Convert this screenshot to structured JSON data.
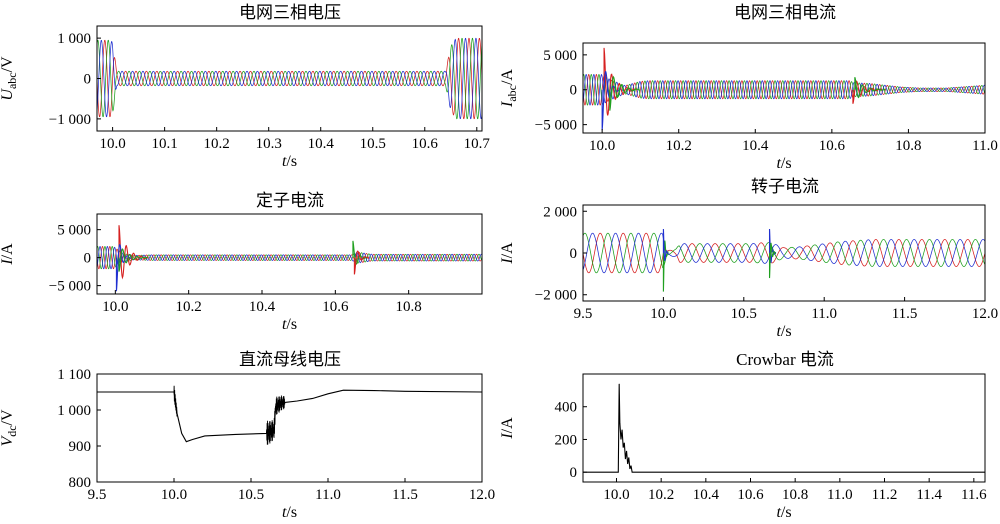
{
  "chart_data": [
    {
      "id": "p1",
      "type": "line",
      "title": "电网三相电压",
      "xlabel": "t/s",
      "ylabel": "U_abc/V",
      "ylabel_parts": {
        "sym": "U",
        "sub": "abc",
        "unit": "/V"
      },
      "xlim": [
        9.97,
        10.71
      ],
      "ylim": [
        -1300,
        1300
      ],
      "xticks": [
        10.0,
        10.1,
        10.2,
        10.3,
        10.4,
        10.5,
        10.6,
        10.7
      ],
      "xtick_labels": [
        "10.0",
        "10.1",
        "10.2",
        "10.3",
        "10.4",
        "10.5",
        "10.6",
        "10.7"
      ],
      "yticks": [
        1000,
        0,
        -1000
      ],
      "ytick_labels": [
        "1 000",
        "0",
        "−1 000"
      ],
      "frequency_hz": 50,
      "series": [
        {
          "color": "#d62020",
          "phase_deg": 0
        },
        {
          "color": "#20a020",
          "phase_deg": -120
        },
        {
          "color": "#2030d0",
          "phase_deg": 120
        }
      ],
      "envelope": [
        [
          9.97,
          950
        ],
        [
          9.995,
          950
        ],
        [
          10.0,
          900
        ],
        [
          10.008,
          180
        ],
        [
          10.64,
          180
        ],
        [
          10.65,
          800
        ],
        [
          10.66,
          1000
        ],
        [
          10.71,
          1000
        ]
      ],
      "spikes": []
    },
    {
      "id": "p2",
      "type": "line",
      "title": "电网三相电流",
      "xlabel": "t/s",
      "ylabel": "I_abc/A",
      "ylabel_parts": {
        "sym": "I",
        "sub": "abc",
        "unit": "/A"
      },
      "xlim": [
        9.95,
        11.0
      ],
      "ylim": [
        -6200,
        6700
      ],
      "xticks": [
        10.0,
        10.2,
        10.4,
        10.6,
        10.8,
        11.0
      ],
      "xtick_labels": [
        "10.0",
        "10.2",
        "10.4",
        "10.6",
        "10.8",
        "11.0"
      ],
      "yticks": [
        5000,
        0,
        -5000
      ],
      "ytick_labels": [
        "5 000",
        "0",
        "−5 000"
      ],
      "frequency_hz": 50,
      "series": [
        {
          "color": "#d62020",
          "phase_deg": 0
        },
        {
          "color": "#20a020",
          "phase_deg": -120
        },
        {
          "color": "#2030d0",
          "phase_deg": 120
        }
      ],
      "envelope": [
        [
          9.95,
          2200
        ],
        [
          9.998,
          2200
        ],
        [
          10.02,
          1500
        ],
        [
          10.06,
          600
        ],
        [
          10.1,
          1200
        ],
        [
          10.12,
          1300
        ],
        [
          10.645,
          1300
        ],
        [
          10.66,
          1000
        ],
        [
          10.7,
          900
        ],
        [
          10.78,
          400
        ],
        [
          10.83,
          250
        ],
        [
          10.9,
          250
        ],
        [
          11.0,
          650
        ]
      ],
      "spikes": [
        {
          "x": 10.005,
          "y": 6000,
          "color": "#d62020",
          "decay": 0.02
        },
        {
          "x": 10.0,
          "y": -5800,
          "color": "#2030d0",
          "decay": 0.012
        },
        {
          "x": 10.02,
          "y": -3000,
          "color": "#20a020",
          "decay": 0.02
        },
        {
          "x": 10.655,
          "y": -2000,
          "color": "#d62020",
          "decay": 0.02
        },
        {
          "x": 10.66,
          "y": 1800,
          "color": "#20a020",
          "decay": 0.02
        }
      ]
    },
    {
      "id": "p3",
      "type": "line",
      "title": "定子电流",
      "xlabel": "t/s",
      "ylabel": "I/A",
      "ylabel_parts": {
        "sym": "I",
        "sub": "",
        "unit": "/A"
      },
      "xlim": [
        9.95,
        11.0
      ],
      "ylim": [
        -6500,
        7800
      ],
      "xticks": [
        10.0,
        10.2,
        10.4,
        10.6,
        10.8
      ],
      "xtick_labels": [
        "10.0",
        "10.2",
        "10.4",
        "10.6",
        "10.8"
      ],
      "yticks": [
        5000,
        0,
        -5000
      ],
      "ytick_labels": [
        "5 000",
        "0",
        "−5 000"
      ],
      "frequency_hz": 50,
      "series": [
        {
          "color": "#d62020",
          "phase_deg": 0
        },
        {
          "color": "#20a020",
          "phase_deg": -120
        },
        {
          "color": "#2030d0",
          "phase_deg": 120
        }
      ],
      "envelope": [
        [
          9.95,
          2000
        ],
        [
          9.995,
          2000
        ],
        [
          10.02,
          800
        ],
        [
          10.05,
          400
        ],
        [
          10.1,
          500
        ],
        [
          10.645,
          500
        ],
        [
          10.66,
          1000
        ],
        [
          10.7,
          600
        ],
        [
          11.0,
          600
        ]
      ],
      "spikes": [
        {
          "x": 10.01,
          "y": 5800,
          "color": "#d62020",
          "decay": 0.02
        },
        {
          "x": 10.003,
          "y": -6000,
          "color": "#2030d0",
          "decay": 0.01
        },
        {
          "x": 10.01,
          "y": -2500,
          "color": "#20a020",
          "decay": 0.02
        },
        {
          "x": 10.648,
          "y": 3000,
          "color": "#20a020",
          "decay": 0.01
        },
        {
          "x": 10.652,
          "y": -3000,
          "color": "#d62020",
          "decay": 0.01
        }
      ]
    },
    {
      "id": "p4",
      "type": "line",
      "title": "转子电流",
      "xlabel": "t/s",
      "ylabel": "I/A",
      "ylabel_parts": {
        "sym": "I",
        "sub": "",
        "unit": "/A"
      },
      "xlim": [
        9.5,
        12.0
      ],
      "ylim": [
        -2300,
        2300
      ],
      "xticks": [
        9.5,
        10.0,
        10.5,
        11.0,
        11.5,
        12.0
      ],
      "xtick_labels": [
        "9.5",
        "10.0",
        "10.5",
        "11.0",
        "11.5",
        "12.0"
      ],
      "yticks": [
        2000,
        0,
        -2000
      ],
      "ytick_labels": [
        "2 000",
        "0",
        "−2 000"
      ],
      "frequency_hz": 7,
      "series": [
        {
          "color": "#d62020",
          "phase_deg": 0
        },
        {
          "color": "#20a020",
          "phase_deg": -120
        },
        {
          "color": "#2030d0",
          "phase_deg": 120
        }
      ],
      "envelope": [
        [
          9.5,
          950
        ],
        [
          9.995,
          950
        ],
        [
          10.02,
          100
        ],
        [
          10.08,
          200
        ],
        [
          10.1,
          450
        ],
        [
          10.55,
          450
        ],
        [
          10.62,
          500
        ],
        [
          10.67,
          500
        ],
        [
          10.75,
          250
        ],
        [
          10.85,
          300
        ],
        [
          11.1,
          550
        ],
        [
          11.3,
          650
        ],
        [
          12.0,
          650
        ]
      ],
      "spikes": [
        {
          "x": 10.0,
          "y": -1850,
          "color": "#20a020",
          "decay": 0.008
        },
        {
          "x": 10.0,
          "y": 1150,
          "color": "#2030d0",
          "decay": 0.008
        },
        {
          "x": 10.66,
          "y": 1150,
          "color": "#2030d0",
          "decay": 0.01
        },
        {
          "x": 10.66,
          "y": -1200,
          "color": "#20a020",
          "decay": 0.01
        }
      ]
    },
    {
      "id": "p5",
      "type": "line",
      "title": "直流母线电压",
      "xlabel": "t/s",
      "ylabel": "V_dc/V",
      "ylabel_parts": {
        "sym": "V",
        "sub": "dc",
        "unit": "/V"
      },
      "xlim": [
        9.5,
        12.0
      ],
      "ylim": [
        800,
        1100
      ],
      "xticks": [
        9.5,
        10.0,
        10.5,
        11.0,
        11.5,
        12.0
      ],
      "xtick_labels": [
        "9.5",
        "10.0",
        "10.5",
        "11.0",
        "11.5",
        "12.0"
      ],
      "yticks": [
        1100,
        1000,
        900,
        800
      ],
      "ytick_labels": [
        "1 100",
        "1 000",
        "900",
        "800"
      ],
      "series": [
        {
          "color": "#000000",
          "x": [
            9.5,
            10.0,
            10.02,
            10.05,
            10.08,
            10.12,
            10.2,
            10.4,
            10.6,
            10.62,
            10.65,
            10.66,
            10.7,
            10.8,
            10.9,
            11.0,
            11.1,
            11.3,
            11.5,
            12.0
          ],
          "y": [
            1050,
            1050,
            990,
            935,
            912,
            918,
            928,
            932,
            935,
            938,
            945,
            1010,
            1020,
            1025,
            1032,
            1045,
            1055,
            1054,
            1052,
            1050
          ]
        }
      ],
      "ripples": [
        {
          "x0": 10.0,
          "x1": 10.02,
          "amp": 20
        },
        {
          "x0": 10.6,
          "x1": 10.72,
          "amp": 35
        }
      ]
    },
    {
      "id": "p6",
      "type": "line",
      "title": "Crowbar 电流",
      "xlabel": "t/s",
      "ylabel": "I/A",
      "ylabel_parts": {
        "sym": "I",
        "sub": "",
        "unit": "/A"
      },
      "xlim": [
        9.85,
        11.65
      ],
      "ylim": [
        -60,
        600
      ],
      "xticks": [
        10.0,
        10.2,
        10.4,
        10.6,
        10.8,
        11.0,
        11.2,
        11.4,
        11.6
      ],
      "xtick_labels": [
        "10.0",
        "10.2",
        "10.4",
        "10.6",
        "10.8",
        "11.0",
        "11.2",
        "11.4",
        "11.6"
      ],
      "yticks": [
        400,
        200,
        0
      ],
      "ytick_labels": [
        "400",
        "200",
        "0"
      ],
      "series": [
        {
          "color": "#000000",
          "x": [
            9.85,
            10.0,
            10.008,
            10.012,
            10.015,
            10.02,
            10.025,
            10.03,
            10.035,
            10.04,
            10.045,
            10.05,
            10.055,
            10.06,
            10.065,
            10.07,
            10.08,
            10.1,
            11.65
          ],
          "y": [
            0,
            0,
            0,
            540,
            300,
            200,
            260,
            150,
            180,
            80,
            130,
            50,
            90,
            20,
            40,
            0,
            0,
            0,
            0
          ]
        }
      ]
    }
  ]
}
